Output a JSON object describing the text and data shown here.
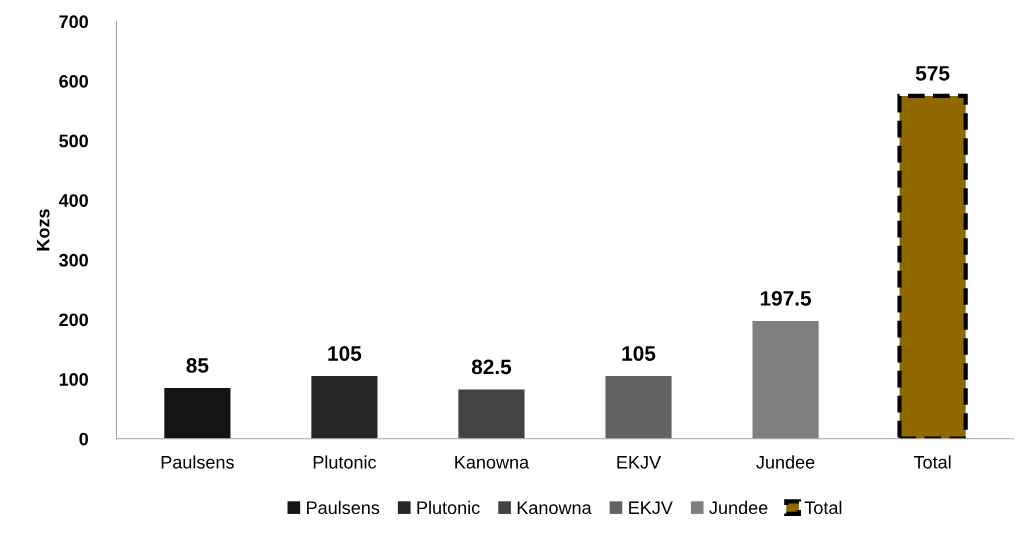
{
  "chart_data": {
    "type": "bar",
    "ylabel": "Kozs",
    "categories": [
      "Paulsens",
      "Plutonic",
      "Kanowna",
      "EKJV",
      "Jundee",
      "Total"
    ],
    "series": [
      {
        "name": "Paulsens",
        "color": "#141414",
        "values": [
          85,
          null,
          null,
          null,
          null,
          null
        ]
      },
      {
        "name": "Plutonic",
        "color": "#262626",
        "values": [
          null,
          105,
          null,
          null,
          null,
          null
        ]
      },
      {
        "name": "Kanowna",
        "color": "#434343",
        "values": [
          null,
          null,
          82.5,
          null,
          null,
          null
        ]
      },
      {
        "name": "EKJV",
        "color": "#636363",
        "values": [
          null,
          null,
          null,
          105,
          null,
          null
        ]
      },
      {
        "name": "Jundee",
        "color": "#7f7f7f",
        "values": [
          null,
          null,
          null,
          null,
          197.5,
          null
        ]
      },
      {
        "name": "Total",
        "color": "#8f6800",
        "line_style": "dashed",
        "values": [
          null,
          null,
          null,
          null,
          null,
          575
        ]
      }
    ],
    "ylim": [
      0,
      700
    ],
    "yticks": [
      0,
      100,
      200,
      300,
      400,
      500,
      600,
      700
    ],
    "data_labels": true,
    "grid": false,
    "legend": "bottom"
  }
}
